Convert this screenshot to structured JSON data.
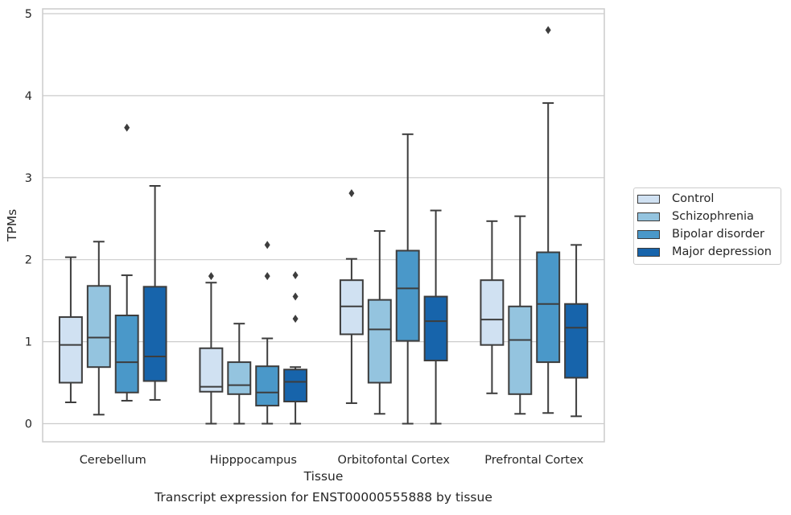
{
  "chart_data": {
    "type": "boxplot",
    "title": "Transcript expression for ENST00000555888 by tissue",
    "xlabel": "Tissue",
    "ylabel": "TPMs",
    "ylim": [
      -0.23,
      5.08
    ],
    "yticks": [
      0,
      1,
      2,
      3,
      4,
      5
    ],
    "grid": true,
    "legend_position": "right",
    "categories": [
      "Cerebellum",
      "Hipppocampus",
      "Orbitofontal Cortex",
      "Prefrontal Cortex"
    ],
    "series": [
      {
        "name": "Control",
        "color": "#d0e1f2",
        "boxes": [
          {
            "whislo": 0.26,
            "q1": 0.5,
            "med": 0.96,
            "q3": 1.3,
            "whishi": 2.03,
            "fliers": []
          },
          {
            "whislo": 0.0,
            "q1": 0.39,
            "med": 0.45,
            "q3": 0.92,
            "whishi": 1.72,
            "fliers": [
              1.8
            ]
          },
          {
            "whislo": 0.25,
            "q1": 1.09,
            "med": 1.43,
            "q3": 1.75,
            "whishi": 2.01,
            "fliers": [
              2.81
            ]
          },
          {
            "whislo": 0.37,
            "q1": 0.96,
            "med": 1.27,
            "q3": 1.75,
            "whishi": 2.47,
            "fliers": []
          }
        ]
      },
      {
        "name": "Schizophrenia",
        "color": "#94c4df",
        "boxes": [
          {
            "whislo": 0.11,
            "q1": 0.69,
            "med": 1.05,
            "q3": 1.68,
            "whishi": 2.22,
            "fliers": []
          },
          {
            "whislo": 0.0,
            "q1": 0.36,
            "med": 0.47,
            "q3": 0.75,
            "whishi": 1.22,
            "fliers": []
          },
          {
            "whislo": 0.12,
            "q1": 0.5,
            "med": 1.15,
            "q3": 1.51,
            "whishi": 2.35,
            "fliers": []
          },
          {
            "whislo": 0.12,
            "q1": 0.36,
            "med": 1.02,
            "q3": 1.43,
            "whishi": 2.53,
            "fliers": []
          }
        ]
      },
      {
        "name": "Bipolar disorder",
        "color": "#4a98c9",
        "boxes": [
          {
            "whislo": 0.28,
            "q1": 0.38,
            "med": 0.75,
            "q3": 1.32,
            "whishi": 1.81,
            "fliers": [
              3.61
            ]
          },
          {
            "whislo": 0.0,
            "q1": 0.22,
            "med": 0.38,
            "q3": 0.7,
            "whishi": 1.04,
            "fliers": [
              2.18,
              1.8
            ]
          },
          {
            "whislo": 0.0,
            "q1": 1.01,
            "med": 1.65,
            "q3": 2.11,
            "whishi": 3.53,
            "fliers": []
          },
          {
            "whislo": 0.13,
            "q1": 0.75,
            "med": 1.46,
            "q3": 2.09,
            "whishi": 3.91,
            "fliers": [
              4.8
            ]
          }
        ]
      },
      {
        "name": "Major depression",
        "color": "#1764ab",
        "boxes": [
          {
            "whislo": 0.29,
            "q1": 0.52,
            "med": 0.82,
            "q3": 1.67,
            "whishi": 2.9,
            "fliers": []
          },
          {
            "whislo": 0.0,
            "q1": 0.27,
            "med": 0.51,
            "q3": 0.66,
            "whishi": 0.69,
            "fliers": [
              1.81,
              1.55,
              1.28
            ]
          },
          {
            "whislo": 0.0,
            "q1": 0.77,
            "med": 1.25,
            "q3": 1.55,
            "whishi": 2.6,
            "fliers": []
          },
          {
            "whislo": 0.09,
            "q1": 0.56,
            "med": 1.17,
            "q3": 1.46,
            "whishi": 2.18,
            "fliers": []
          }
        ]
      }
    ]
  }
}
